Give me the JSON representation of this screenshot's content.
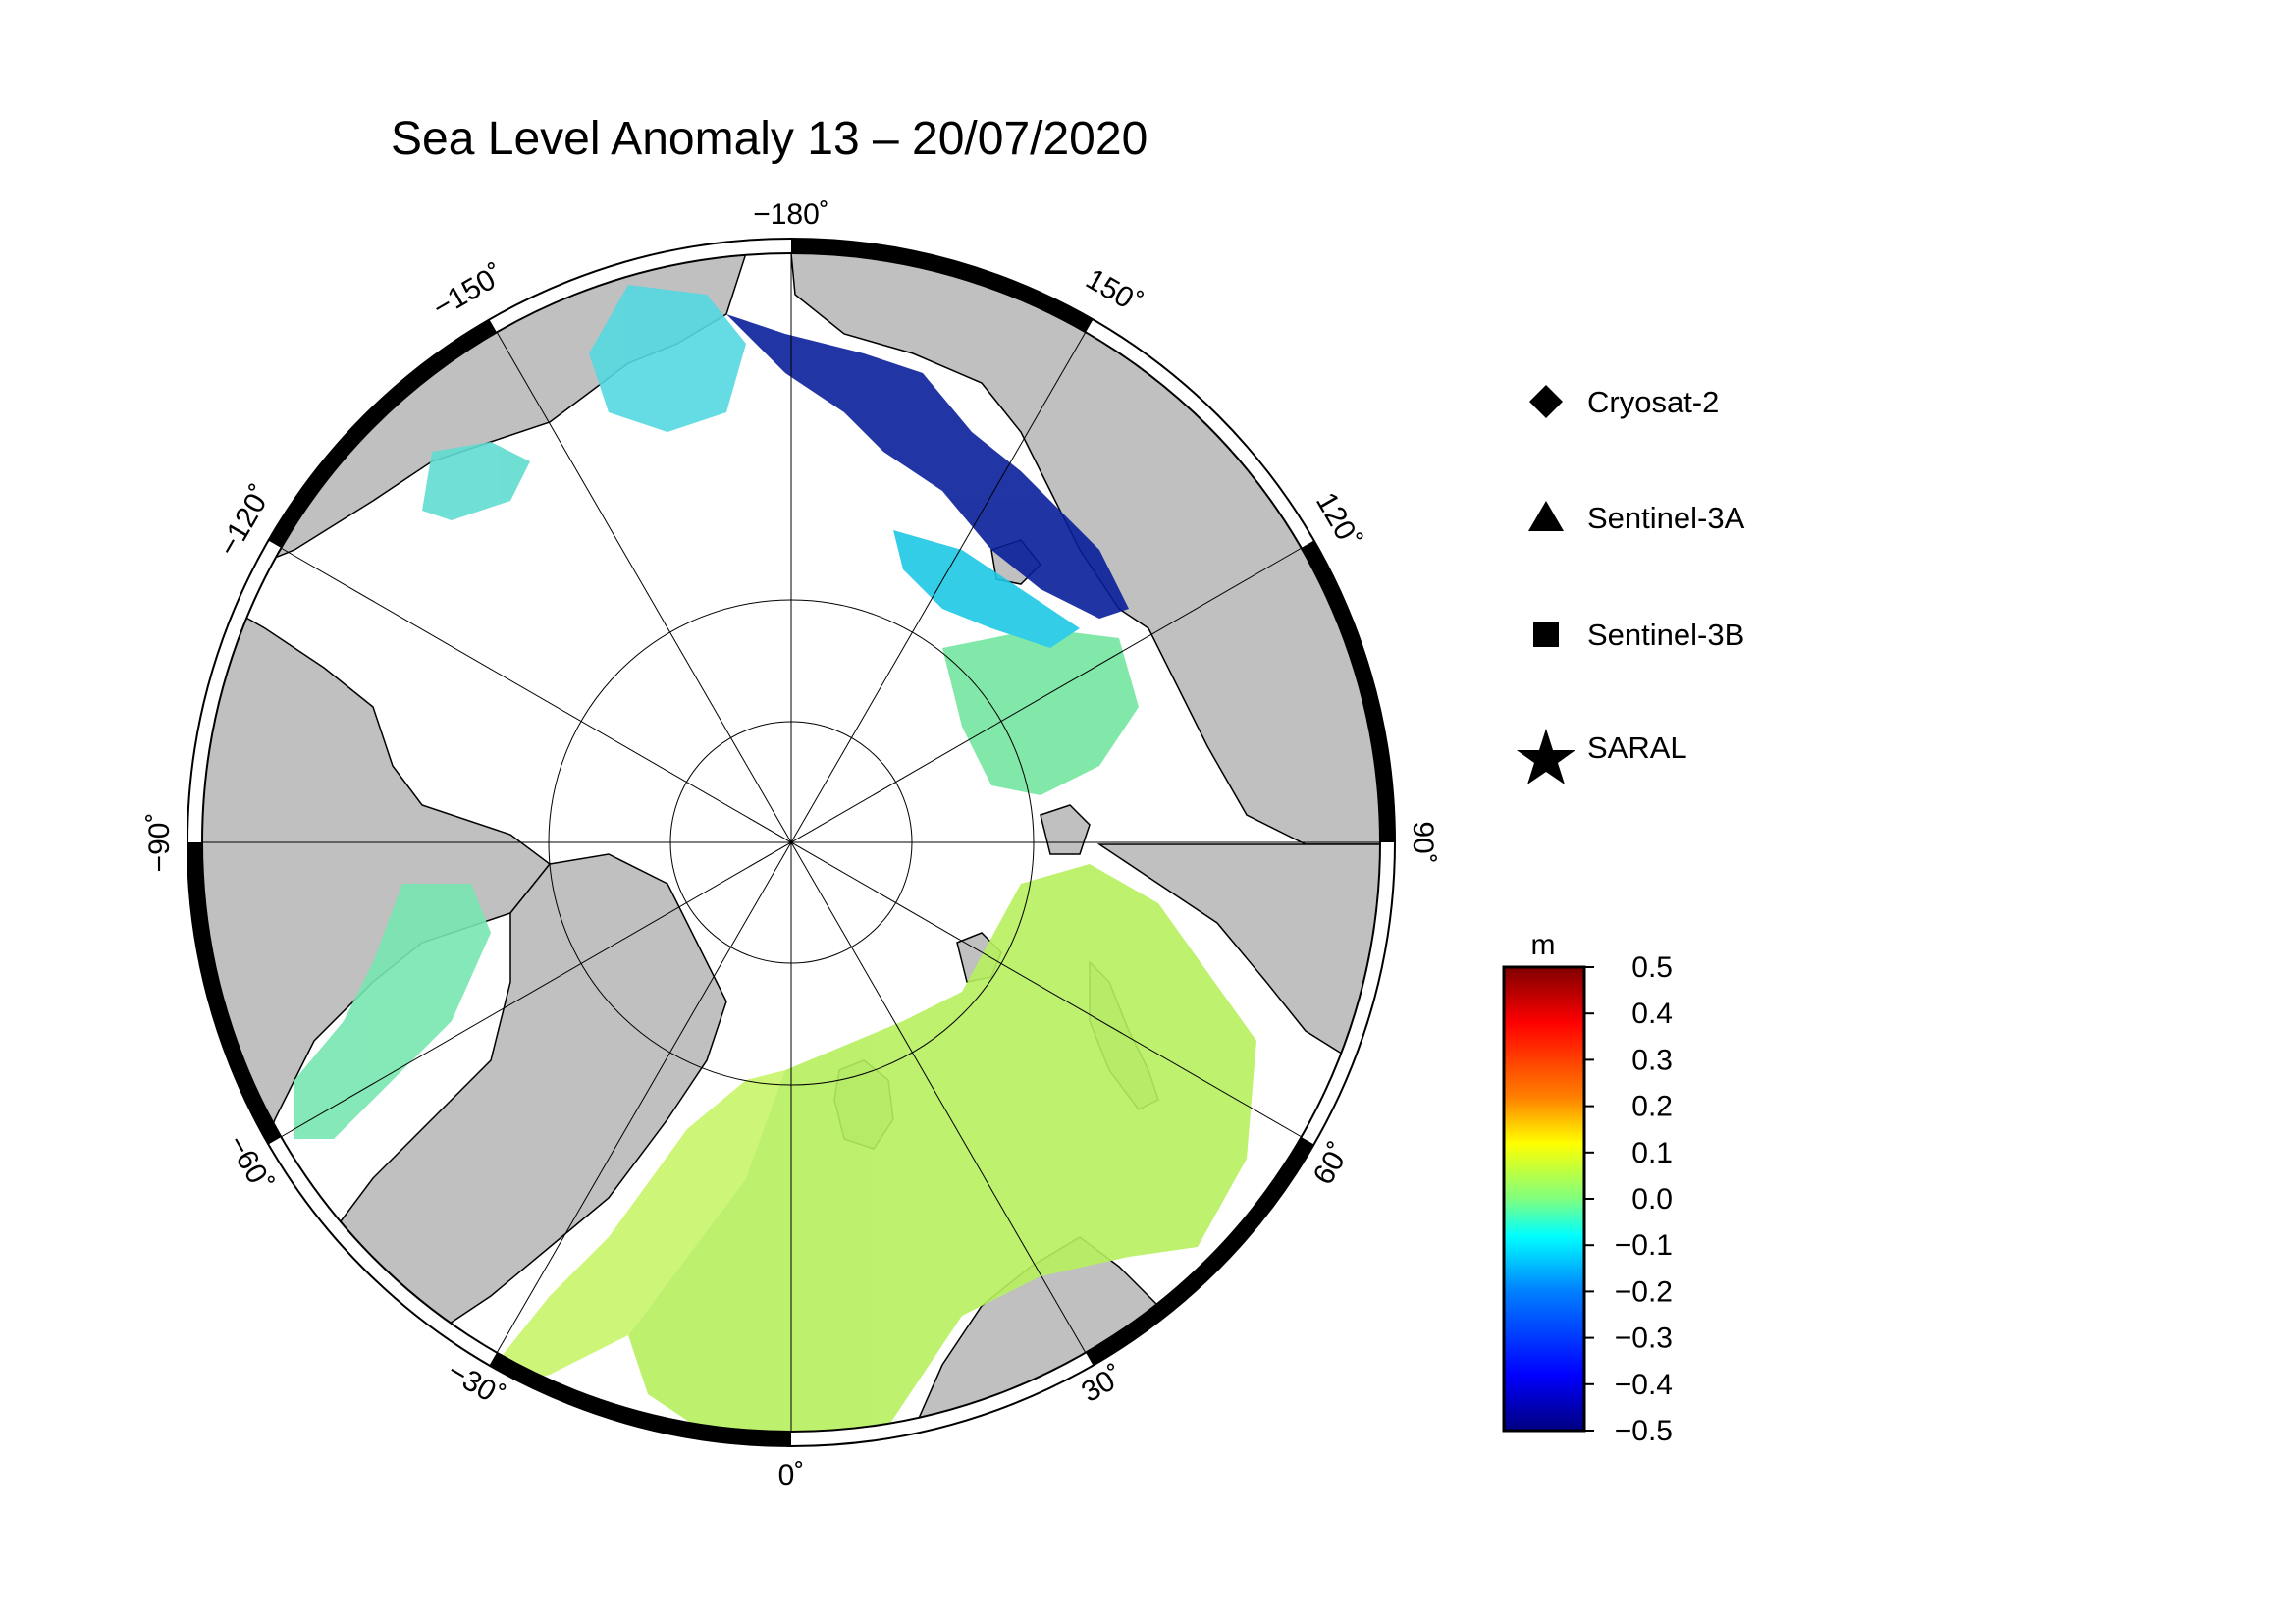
{
  "title": "Sea Level Anomaly 13 – 20/07/2020",
  "longitude_labels": {
    "lon_m180": "−180˚",
    "lon_m150": "−150˚",
    "lon_m120": "−120˚",
    "lon_m90": "−90˚",
    "lon_m60": "−60˚",
    "lon_m30": "−30˚",
    "lon_0": "0˚",
    "lon_30": "30˚",
    "lon_60": "60˚",
    "lon_90": "90˚",
    "lon_120": "120˚",
    "lon_150": "150˚"
  },
  "legend": {
    "items": [
      {
        "label": "Cryosat-2",
        "marker": "diamond"
      },
      {
        "label": "Sentinel-3A",
        "marker": "triangle"
      },
      {
        "label": "Sentinel-3B",
        "marker": "square"
      },
      {
        "label": "SARAL",
        "marker": "star"
      }
    ]
  },
  "colorbar": {
    "unit": "m",
    "ticks": [
      "0.5",
      "0.4",
      "0.3",
      "0.2",
      "0.1",
      "0.0",
      "−0.1",
      "−0.2",
      "−0.3",
      "−0.4",
      "−0.5"
    ],
    "range": [
      -0.5,
      0.5
    ],
    "colormap": [
      "#00007f",
      "#0000ff",
      "#007fff",
      "#00ffff",
      "#7fff7f",
      "#ffff00",
      "#ff7f00",
      "#ff0000",
      "#7f0000"
    ]
  },
  "map": {
    "projection": "north polar stereographic",
    "colors": {
      "land": "#c0c0c0",
      "ice": "#ffffff",
      "frame": "#000000"
    }
  }
}
